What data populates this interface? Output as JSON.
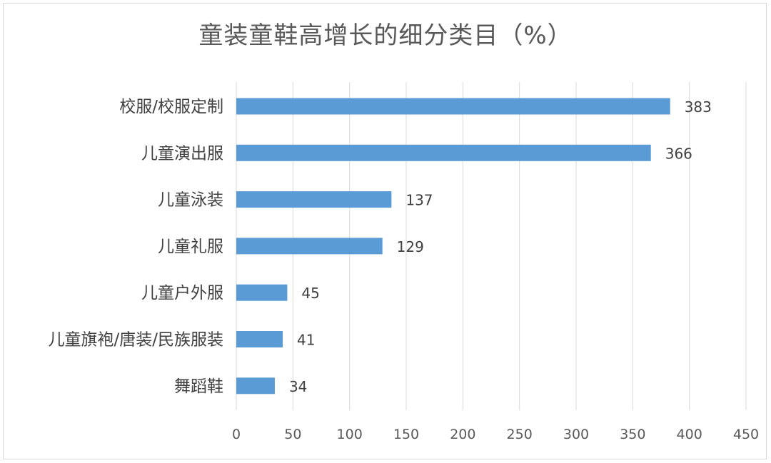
{
  "chart_data": {
    "type": "bar",
    "orientation": "horizontal",
    "title": "童装童鞋高增长的细分类目（%）",
    "categories": [
      "校服/校服定制",
      "儿童演出服",
      "儿童泳装",
      "儿童礼服",
      "儿童户外服",
      "儿童旗袍/唐装/民族服装",
      "舞蹈鞋"
    ],
    "values": [
      383,
      366,
      137,
      129,
      45,
      41,
      34
    ],
    "xlim": [
      0,
      450
    ],
    "ticks": [
      0,
      50,
      100,
      150,
      200,
      250,
      300,
      350,
      400,
      450
    ],
    "grid": true,
    "bar_color": "#5b9bd5",
    "grid_color": "#d9d9d9",
    "data_labels": true
  }
}
